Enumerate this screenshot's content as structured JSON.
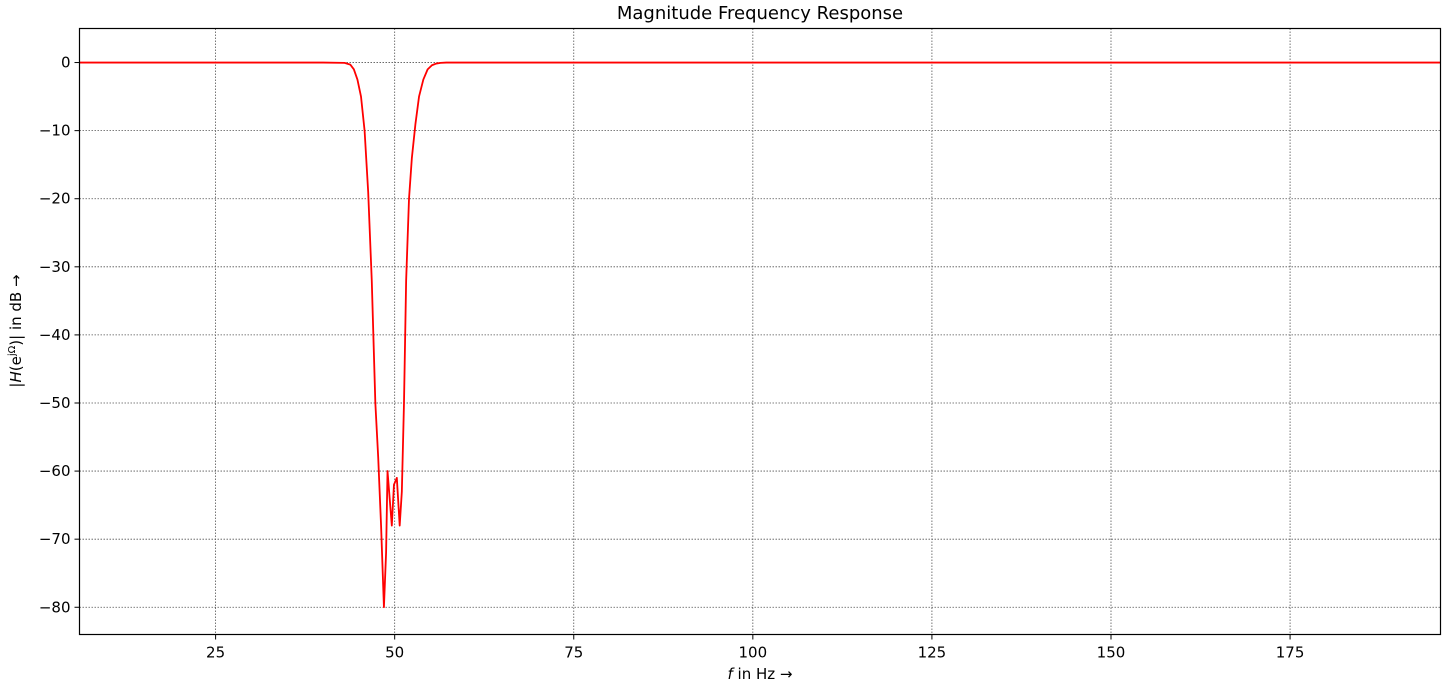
{
  "chart_data": {
    "type": "line",
    "title": "Magnitude Frequency Response",
    "xlabel_italic": "f",
    "xlabel_rest": " in Hz →",
    "ylabel_a": "|",
    "ylabel_b": "H",
    "ylabel_c": "(e",
    "ylabel_sup": "jΩ",
    "ylabel_d": ")| in dB  →",
    "xlim": [
      6,
      196
    ],
    "ylim": [
      -84,
      5
    ],
    "grid": true,
    "xticks": [
      25,
      50,
      75,
      100,
      125,
      150,
      175
    ],
    "xtick_labels": [
      "25",
      "50",
      "75",
      "100",
      "125",
      "150",
      "175"
    ],
    "yticks": [
      0,
      -10,
      -20,
      -30,
      -40,
      -50,
      -60,
      -70,
      -80
    ],
    "ytick_labels": [
      "0",
      "−10",
      "−20",
      "−30",
      "−40",
      "−50",
      "−60",
      "−70",
      "−80"
    ],
    "series": [
      {
        "color": "#ff0000",
        "x": [
          6,
          40,
          43,
          43.8,
          44.3,
          44.8,
          45.3,
          45.8,
          46.3,
          46.8,
          47.3,
          47.7,
          48.1,
          48.5,
          48.8,
          49.0,
          49.3,
          49.6,
          49.9,
          50.3,
          50.7,
          51.0,
          51.3,
          51.6,
          52.0,
          52.4,
          52.9,
          53.4,
          54.0,
          54.6,
          55.2,
          55.8,
          56.4,
          57.2,
          58.5,
          62,
          196
        ],
        "y": [
          0,
          0,
          -0.05,
          -0.3,
          -1,
          -2.5,
          -5,
          -10,
          -19,
          -32,
          -50,
          -58,
          -68,
          -80,
          -72,
          -60,
          -64,
          -68,
          -62,
          -61,
          -68,
          -63,
          -50,
          -32,
          -20,
          -14,
          -9,
          -5,
          -2.5,
          -1,
          -0.4,
          -0.15,
          -0.05,
          0,
          0,
          0,
          0
        ]
      }
    ]
  }
}
